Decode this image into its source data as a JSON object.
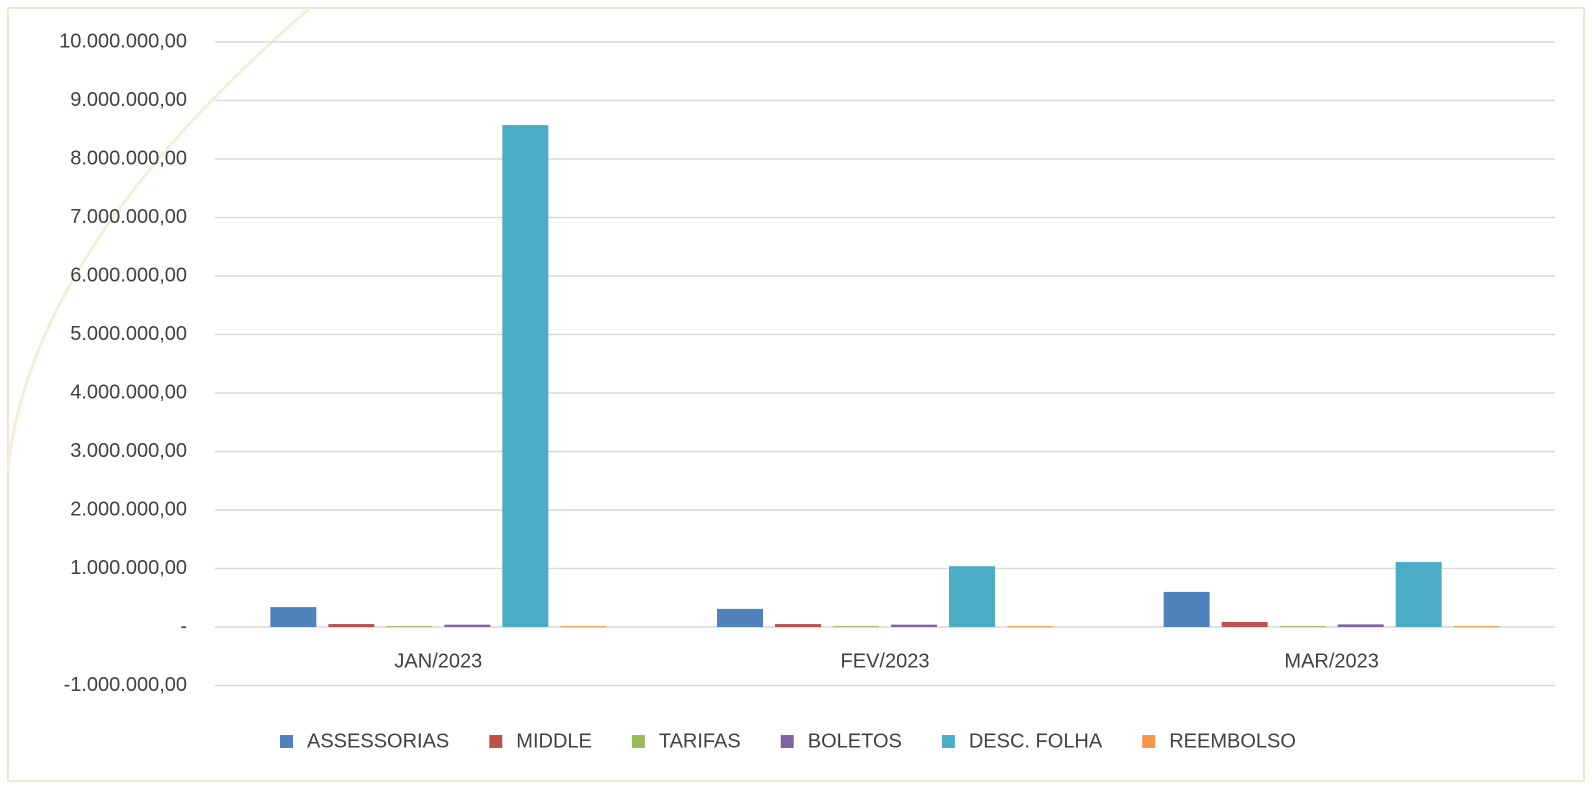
{
  "chart_data": {
    "type": "bar",
    "categories": [
      "JAN/2023",
      "FEV/2023",
      "MAR/2023"
    ],
    "series": [
      {
        "name": "ASSESSORIAS",
        "color": "#4f81bd",
        "values": [
          340000,
          310000,
          600000
        ]
      },
      {
        "name": "MIDDLE",
        "color": "#c0504d",
        "values": [
          50000,
          50000,
          85000
        ]
      },
      {
        "name": "TARIFAS",
        "color": "#9bbb59",
        "values": [
          15000,
          15000,
          15000
        ]
      },
      {
        "name": "BOLETOS",
        "color": "#8064a2",
        "values": [
          40000,
          40000,
          45000
        ]
      },
      {
        "name": "DESC. FOLHA",
        "color": "#4bacc6",
        "values": [
          8580000,
          1040000,
          1110000
        ]
      },
      {
        "name": "REEMBOLSO",
        "color": "#f79646",
        "values": [
          15000,
          15000,
          15000
        ]
      }
    ],
    "ylim": [
      -1000000,
      10000000
    ],
    "yticks": [
      {
        "value": -1000000,
        "label": "-1.000.000,00"
      },
      {
        "value": 0,
        "label": "-"
      },
      {
        "value": 1000000,
        "label": "1.000.000,00"
      },
      {
        "value": 2000000,
        "label": "2.000.000,00"
      },
      {
        "value": 3000000,
        "label": "3.000.000,00"
      },
      {
        "value": 4000000,
        "label": "4.000.000,00"
      },
      {
        "value": 5000000,
        "label": "5.000.000,00"
      },
      {
        "value": 6000000,
        "label": "6.000.000,00"
      },
      {
        "value": 7000000,
        "label": "7.000.000,00"
      },
      {
        "value": 8000000,
        "label": "8.000.000,00"
      },
      {
        "value": 9000000,
        "label": "9.000.000,00"
      },
      {
        "value": 10000000,
        "label": "10.000.000,00"
      }
    ],
    "grid": true,
    "legend": "bottom"
  }
}
